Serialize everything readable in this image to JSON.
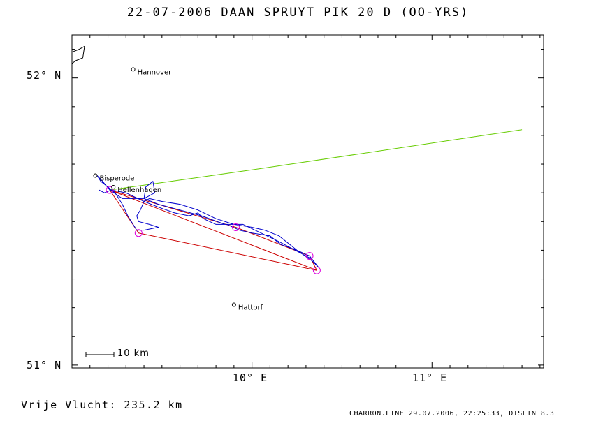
{
  "header": {
    "title": "22-07-2006    DAAN SPRUYT    PIK 20 D (OO-YRS)"
  },
  "axes": {
    "lat_labels": [
      "52° N",
      "51° N"
    ],
    "lon_labels": [
      "10° E",
      "11° E"
    ]
  },
  "places": [
    {
      "name": "Hannover",
      "lon": 9.34,
      "lat": 52.03
    },
    {
      "name": "Bisperode",
      "lon": 9.13,
      "lat": 51.66
    },
    {
      "name": "Hellenhagen",
      "lon": 9.23,
      "lat": 51.62
    },
    {
      "name": "Hattorf",
      "lon": 9.9,
      "lat": 51.21
    }
  ],
  "scale_bar": {
    "label": "10 km"
  },
  "summary": {
    "distance_label": "Vrije Vlucht:  235.2 km"
  },
  "footer": {
    "text": "CHARRON.LINE 29.07.2006, 22:25:33, DISLIN 8.3"
  },
  "map_data": {
    "extent": {
      "lon_min": 9.0,
      "lon_max": 11.62,
      "lat_min": 50.99,
      "lat_max": 52.15
    },
    "colors": {
      "track": "#0000cc",
      "task": "#cc0000",
      "turnpoint": "#dd00dd",
      "extension": "#66cc00",
      "frame": "#000000"
    },
    "task_route": [
      [
        9.21,
        51.61
      ],
      [
        9.37,
        51.46
      ],
      [
        10.36,
        51.33
      ],
      [
        10.32,
        51.38
      ],
      [
        9.91,
        51.48
      ],
      [
        9.21,
        51.61
      ],
      [
        10.36,
        51.33
      ]
    ],
    "turnpoints": [
      [
        9.21,
        51.61
      ],
      [
        9.37,
        51.46
      ],
      [
        9.91,
        51.48
      ],
      [
        10.32,
        51.38
      ],
      [
        10.36,
        51.33
      ]
    ],
    "extension_line": [
      [
        9.21,
        51.61
      ],
      [
        10.0,
        51.68
      ],
      [
        11.5,
        51.82
      ]
    ],
    "flight_track": [
      [
        9.15,
        51.61
      ],
      [
        9.18,
        51.6
      ],
      [
        9.22,
        51.61
      ],
      [
        9.3,
        51.6
      ],
      [
        9.4,
        51.57
      ],
      [
        9.48,
        51.55
      ],
      [
        9.57,
        51.53
      ],
      [
        9.65,
        51.52
      ],
      [
        9.7,
        51.53
      ],
      [
        9.73,
        51.51
      ],
      [
        9.8,
        51.49
      ],
      [
        9.86,
        51.49
      ],
      [
        9.93,
        51.47
      ],
      [
        10.0,
        51.46
      ],
      [
        10.1,
        51.45
      ],
      [
        10.16,
        51.42
      ],
      [
        10.25,
        51.4
      ],
      [
        10.32,
        51.38
      ],
      [
        10.37,
        51.34
      ],
      [
        10.34,
        51.36
      ],
      [
        10.25,
        51.4
      ],
      [
        10.15,
        51.45
      ],
      [
        10.07,
        51.47
      ],
      [
        10.0,
        51.48
      ],
      [
        9.9,
        51.49
      ],
      [
        9.8,
        51.51
      ],
      [
        9.7,
        51.54
      ],
      [
        9.6,
        51.56
      ],
      [
        9.5,
        51.57
      ],
      [
        9.43,
        51.58
      ],
      [
        9.4,
        51.57
      ],
      [
        9.38,
        51.54
      ],
      [
        9.36,
        51.52
      ],
      [
        9.37,
        51.5
      ],
      [
        9.43,
        51.49
      ],
      [
        9.48,
        51.48
      ],
      [
        9.4,
        51.47
      ],
      [
        9.36,
        51.47
      ],
      [
        9.31,
        51.52
      ],
      [
        9.28,
        51.56
      ],
      [
        9.24,
        51.6
      ],
      [
        9.2,
        51.62
      ],
      [
        9.16,
        51.64
      ],
      [
        9.14,
        51.66
      ],
      [
        9.17,
        51.64
      ],
      [
        9.21,
        51.61
      ],
      [
        9.28,
        51.58
      ],
      [
        9.4,
        51.58
      ],
      [
        9.46,
        51.6
      ],
      [
        9.45,
        51.64
      ],
      [
        9.41,
        51.62
      ],
      [
        9.4,
        51.58
      ],
      [
        9.48,
        51.56
      ],
      [
        9.6,
        51.54
      ],
      [
        9.72,
        51.52
      ],
      [
        9.85,
        51.49
      ],
      [
        9.95,
        51.49
      ],
      [
        10.05,
        51.46
      ],
      [
        10.15,
        51.43
      ],
      [
        10.24,
        51.4
      ],
      [
        10.33,
        51.37
      ]
    ],
    "coastline_fragment": [
      [
        9.0,
        52.09
      ],
      [
        9.04,
        52.1
      ],
      [
        9.07,
        52.11
      ],
      [
        9.06,
        52.07
      ],
      [
        9.02,
        52.06
      ],
      [
        9.0,
        52.05
      ]
    ]
  }
}
